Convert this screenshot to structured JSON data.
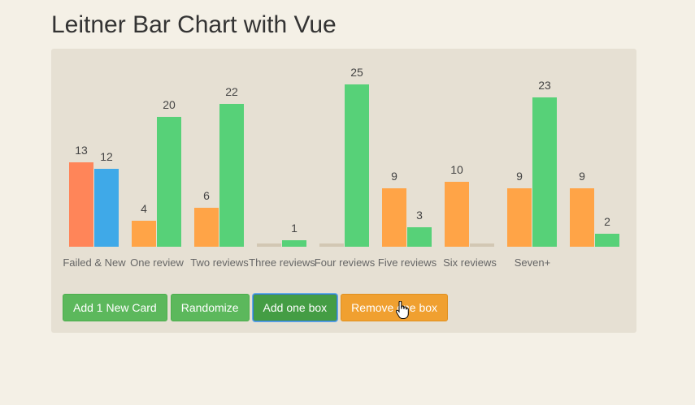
{
  "title": "Leitner Bar Chart with Vue",
  "buttons": {
    "add_card": "Add 1 New Card",
    "randomize": "Randomize",
    "add_box": "Add one box",
    "remove_box": "Remove one box"
  },
  "colors": {
    "background": "#f4f0e6",
    "panel": "#e6e0d3",
    "failed": "#ff8559",
    "new": "#3fa9e8",
    "due": "#ffa447",
    "review": "#57d178",
    "empty": "#d2c7b3"
  },
  "chart_data": {
    "type": "bar",
    "categories": [
      "Failed & New",
      "One review",
      "Two reviews",
      "Three reviews",
      "Four reviews",
      "Five reviews",
      "Six reviews",
      "Seven+",
      ""
    ],
    "series": [
      {
        "values": [
          13,
          4,
          6,
          0,
          0,
          9,
          10,
          9,
          9
        ],
        "colors": [
          "#ff8559",
          "#ffa447",
          "#ffa447",
          "#ffa447",
          "#ffa447",
          "#ffa447",
          "#ffa447",
          "#ffa447",
          "#ffa447"
        ]
      },
      {
        "values": [
          12,
          20,
          22,
          1,
          25,
          3,
          0,
          23,
          2
        ],
        "colors": [
          "#3fa9e8",
          "#57d178",
          "#57d178",
          "#57d178",
          "#57d178",
          "#57d178",
          "#57d178",
          "#57d178",
          "#57d178"
        ]
      }
    ],
    "ylim": [
      0,
      25
    ]
  }
}
